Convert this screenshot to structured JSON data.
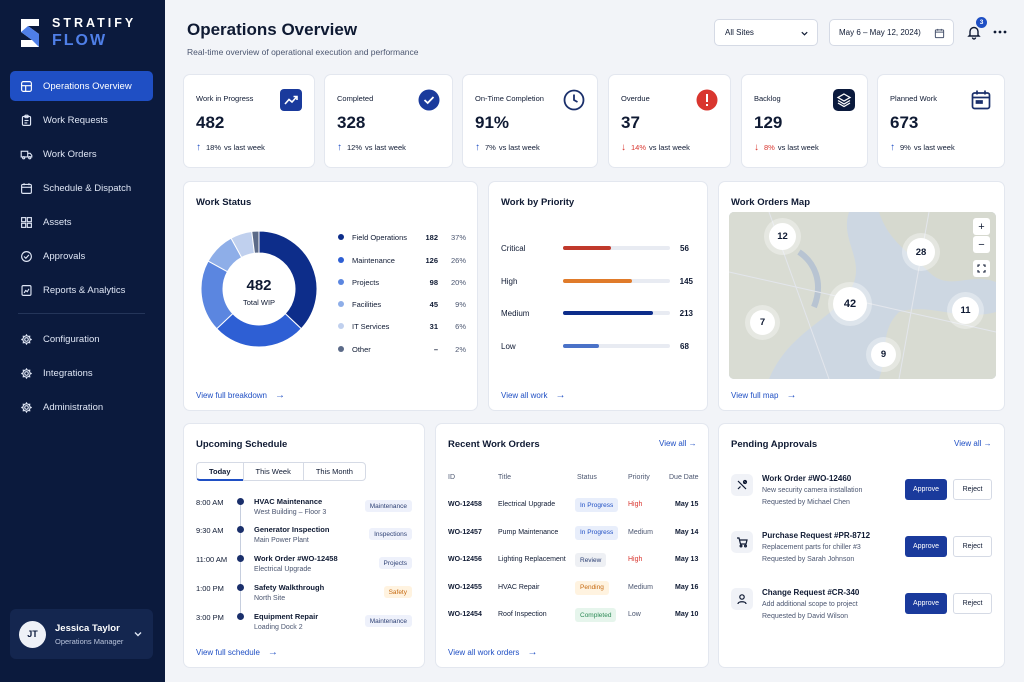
{
  "brand": {
    "line1": "STRATIFY",
    "line2": "FLOW"
  },
  "nav": {
    "primary": [
      {
        "label": "Operations Overview",
        "icon": "dashboard-icon",
        "active": true
      },
      {
        "label": "Work Requests",
        "icon": "clipboard-icon"
      },
      {
        "label": "Work Orders",
        "icon": "truck-icon"
      },
      {
        "label": "Schedule & Dispatch",
        "icon": "calendar-icon"
      },
      {
        "label": "Assets",
        "icon": "box-icon"
      },
      {
        "label": "Approvals",
        "icon": "check-circle-icon"
      },
      {
        "label": "Reports & Analytics",
        "icon": "report-icon"
      }
    ],
    "secondary": [
      {
        "label": "Configuration",
        "icon": "gear-icon"
      },
      {
        "label": "Integrations",
        "icon": "gear-icon"
      },
      {
        "label": "Administration",
        "icon": "gear-icon"
      }
    ]
  },
  "user": {
    "initials": "JT",
    "name": "Jessica Taylor",
    "role": "Operations Manager"
  },
  "header": {
    "title": "Operations Overview",
    "subtitle": "Real-time overview of operational execution and performance",
    "site_select": "All Sites",
    "date_range": "May 6 – May 12, 2024)",
    "notification_count": "3"
  },
  "kpis": [
    {
      "label": "Work in Progress",
      "value": "482",
      "pct": "18%",
      "suffix": "vs last week",
      "trend": "up",
      "icon": "trend-up-icon",
      "color": "#1a3a9c"
    },
    {
      "label": "Completed",
      "value": "328",
      "pct": "12%",
      "suffix": "vs last week",
      "trend": "up",
      "icon": "check-circle-icon",
      "color": "#1a3a9c"
    },
    {
      "label": "On-Time Completion",
      "value": "91%",
      "pct": "7%",
      "suffix": "vs last week",
      "trend": "up",
      "icon": "clock-icon",
      "color": "#1a2f6b"
    },
    {
      "label": "Overdue",
      "value": "37",
      "pct": "14%",
      "suffix": "vs last week",
      "trend": "down",
      "icon": "alert-icon",
      "color": "#d9362f"
    },
    {
      "label": "Backlog",
      "value": "129",
      "pct": "8%",
      "suffix": "vs last week",
      "trend": "down",
      "icon": "layers-icon",
      "color": "#0b1a3d"
    },
    {
      "label": "Planned Work",
      "value": "673",
      "pct": "9%",
      "suffix": "vs last week",
      "trend": "up",
      "icon": "calendar-icon",
      "color": "#1a2f6b"
    }
  ],
  "work_status": {
    "title": "Work Status",
    "center_value": "482",
    "center_label": "Total WIP",
    "link": "View full breakdown",
    "items": [
      {
        "name": "Field Operations",
        "count": "182",
        "pct": "37%",
        "value": 37,
        "color": "#0d2d8a"
      },
      {
        "name": "Maintenance",
        "count": "126",
        "pct": "26%",
        "value": 26,
        "color": "#2e5fd4"
      },
      {
        "name": "Projects",
        "count": "98",
        "pct": "20%",
        "value": 20,
        "color": "#5b86e0"
      },
      {
        "name": "Facilities",
        "count": "45",
        "pct": "9%",
        "value": 9,
        "color": "#8eaee8"
      },
      {
        "name": "IT Services",
        "count": "31",
        "pct": "6%",
        "value": 6,
        "color": "#c0d0ee"
      },
      {
        "name": "Other",
        "count": "–",
        "pct": "2%",
        "value": 2,
        "color": "#5b6a88"
      }
    ]
  },
  "work_priority": {
    "title": "Work by Priority",
    "link": "View all work",
    "items": [
      {
        "name": "Critical",
        "count": "56",
        "fraction": 0.45,
        "color": "#c0392b"
      },
      {
        "name": "High",
        "count": "145",
        "fraction": 0.65,
        "color": "#e07b2a"
      },
      {
        "name": "Medium",
        "count": "213",
        "fraction": 0.84,
        "color": "#0d2d8a"
      },
      {
        "name": "Low",
        "count": "68",
        "fraction": 0.34,
        "color": "#4a72c8"
      }
    ]
  },
  "map": {
    "title": "Work Orders Map",
    "link": "View full map",
    "clusters": [
      "12",
      "28",
      "42",
      "7",
      "11",
      "9"
    ]
  },
  "schedule": {
    "title": "Upcoming Schedule",
    "tabs": [
      "Today",
      "This Week",
      "This Month"
    ],
    "link": "View full schedule",
    "items": [
      {
        "time": "8:00 AM",
        "title": "HVAC Maintenance",
        "sub": "West Building – Floor 3",
        "tag": "Maintenance",
        "tag_bg": "#eef1fb",
        "tag_fg": "#2c3f73"
      },
      {
        "time": "9:30 AM",
        "title": "Generator Inspection",
        "sub": "Main Power Plant",
        "tag": "Inspections",
        "tag_bg": "#eef1fb",
        "tag_fg": "#2c3f73"
      },
      {
        "time": "11:00 AM",
        "title": "Work Order #WO-12458",
        "sub": "Electrical Upgrade",
        "tag": "Projects",
        "tag_bg": "#eef1fb",
        "tag_fg": "#2c3f73"
      },
      {
        "time": "1:00 PM",
        "title": "Safety Walkthrough",
        "sub": "North Site",
        "tag": "Safety",
        "tag_bg": "#fff3e0",
        "tag_fg": "#c66a12"
      },
      {
        "time": "3:00 PM",
        "title": "Equipment Repair",
        "sub": "Loading Dock 2",
        "tag": "Maintenance",
        "tag_bg": "#eef1fb",
        "tag_fg": "#2c3f73"
      }
    ]
  },
  "recent_orders": {
    "title": "Recent Work Orders",
    "view_all": "View all",
    "link": "View all work orders",
    "columns": [
      "ID",
      "Title",
      "Status",
      "Priority",
      "Due Date"
    ],
    "rows": [
      {
        "id": "WO-12458",
        "title": "Electrical Upgrade",
        "status": "In Progress",
        "priority": "High",
        "due": "May 15",
        "status_bg": "#e8eefb",
        "status_fg": "#1f4fc4",
        "prio_fg": "#d9362f"
      },
      {
        "id": "WO-12457",
        "title": "Pump Maintenance",
        "status": "In Progress",
        "priority": "Medium",
        "due": "May 14",
        "status_bg": "#e8eefb",
        "status_fg": "#1f4fc4",
        "prio_fg": "#4b5670"
      },
      {
        "id": "WO-12456",
        "title": "Lighting Replacement",
        "status": "Review",
        "priority": "High",
        "due": "May 13",
        "status_bg": "#eef0f4",
        "status_fg": "#2c3f73",
        "prio_fg": "#d9362f"
      },
      {
        "id": "WO-12455",
        "title": "HVAC Repair",
        "status": "Pending",
        "priority": "Medium",
        "due": "May 16",
        "status_bg": "#fff3e0",
        "status_fg": "#c66a12",
        "prio_fg": "#4b5670"
      },
      {
        "id": "WO-12454",
        "title": "Roof Inspection",
        "status": "Completed",
        "priority": "Low",
        "due": "May 10",
        "status_bg": "#e6f5ec",
        "status_fg": "#2e8b57",
        "prio_fg": "#4b5670"
      }
    ]
  },
  "approvals": {
    "title": "Pending Approvals",
    "view_all": "View all",
    "approve_label": "Approve",
    "reject_label": "Reject",
    "items": [
      {
        "title": "Work Order #WO-12460",
        "sub": "New security camera installation",
        "req": "Requested by Michael Chen",
        "icon": "tools-icon"
      },
      {
        "title": "Purchase Request #PR-8712",
        "sub": "Replacement parts for chiller #3",
        "req": "Requested by Sarah Johnson",
        "icon": "cart-icon"
      },
      {
        "title": "Change Request #CR-340",
        "sub": "Add additional scope to project",
        "req": "Requested by David Wilson",
        "icon": "user-icon"
      }
    ]
  }
}
